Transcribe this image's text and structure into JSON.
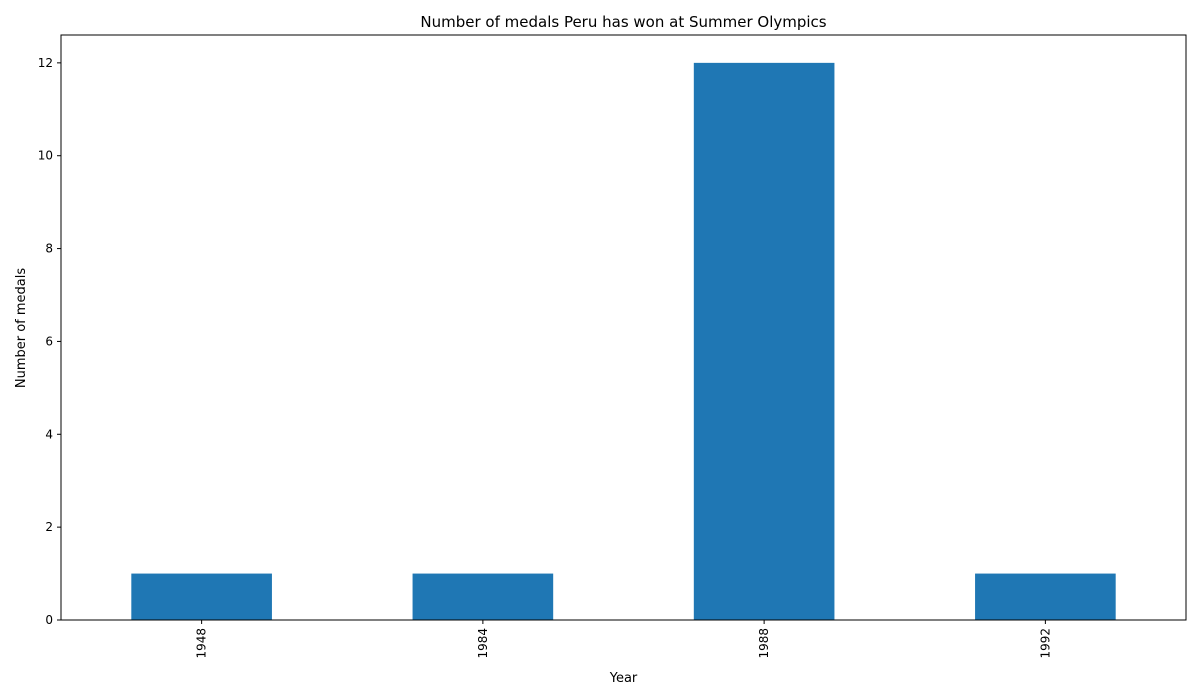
{
  "chart_data": {
    "type": "bar",
    "title": "Number of medals Peru has won at Summer Olympics",
    "xlabel": "Year",
    "ylabel": "Number of medals",
    "categories": [
      "1948",
      "1984",
      "1988",
      "1992"
    ],
    "values": [
      1,
      1,
      12,
      1
    ],
    "ylim": [
      0,
      12.6
    ],
    "yticks": [
      0,
      2,
      4,
      6,
      8,
      10,
      12
    ],
    "grid": false,
    "legend": "none",
    "bar_color": "#1f77b4",
    "x_tick_rotation": "vertical"
  }
}
